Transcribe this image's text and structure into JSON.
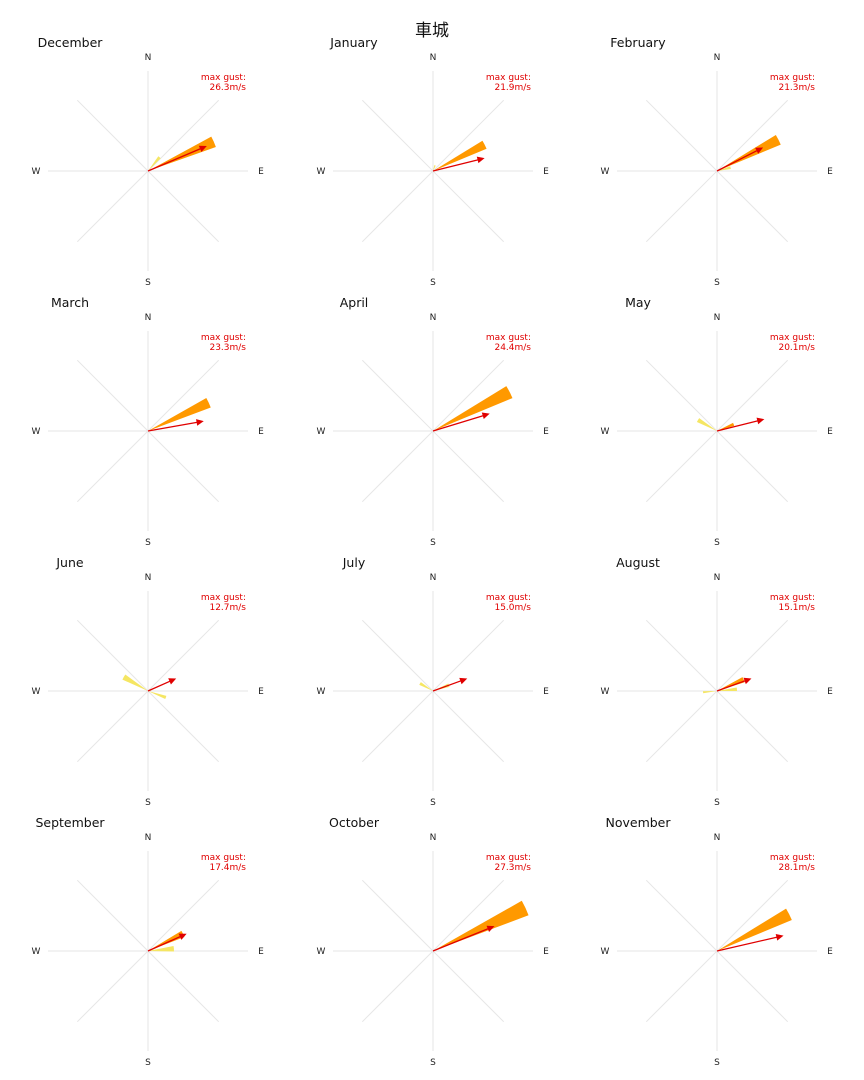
{
  "chart_data": {
    "type": "wind-rose",
    "title": "車城",
    "directions": [
      "N",
      "E",
      "S",
      "W"
    ],
    "gust_label": "max gust:",
    "colors": {
      "wedge_light": "#f5e663",
      "wedge_dark": "#ff9900",
      "arrow": "#e00000",
      "axis": "#e6e6e6"
    },
    "panels": [
      {
        "month": "December",
        "gust_value": "26.3m/s",
        "gust_speed": 26.3,
        "gust_dir": 67,
        "wedges": [
          {
            "dir": 66,
            "len": 0.72,
            "width": 9,
            "level": "dark"
          },
          {
            "dir": 40,
            "len": 0.18,
            "width": 10,
            "level": "light"
          }
        ]
      },
      {
        "month": "January",
        "gust_value": "21.9m/s",
        "gust_speed": 21.9,
        "gust_dir": 76,
        "wedges": [
          {
            "dir": 63,
            "len": 0.58,
            "width": 9,
            "level": "dark"
          },
          {
            "dir": 20,
            "len": 0.06,
            "width": 14,
            "level": "light"
          }
        ]
      },
      {
        "month": "February",
        "gust_value": "21.3m/s",
        "gust_speed": 21.3,
        "gust_dir": 63,
        "wedges": [
          {
            "dir": 63,
            "len": 0.69,
            "width": 9,
            "level": "dark"
          },
          {
            "dir": 76,
            "len": 0.14,
            "width": 12,
            "level": "light"
          }
        ]
      },
      {
        "month": "March",
        "gust_value": "23.3m/s",
        "gust_speed": 23.3,
        "gust_dir": 80,
        "wedges": [
          {
            "dir": 65,
            "len": 0.67,
            "width": 9,
            "level": "dark"
          }
        ]
      },
      {
        "month": "April",
        "gust_value": "24.4m/s",
        "gust_speed": 24.4,
        "gust_dir": 73,
        "wedges": [
          {
            "dir": 63,
            "len": 0.86,
            "width": 9,
            "level": "dark"
          }
        ]
      },
      {
        "month": "May",
        "gust_value": "20.1m/s",
        "gust_speed": 20.1,
        "gust_dir": 76,
        "wedges": [
          {
            "dir": 300,
            "len": 0.22,
            "width": 12,
            "level": "light"
          },
          {
            "dir": 68,
            "len": 0.18,
            "width": 10,
            "level": "dark"
          }
        ]
      },
      {
        "month": "June",
        "gust_value": "12.7m/s",
        "gust_speed": 12.7,
        "gust_dir": 66,
        "wedges": [
          {
            "dir": 300,
            "len": 0.28,
            "width": 12,
            "level": "light"
          },
          {
            "dir": 110,
            "len": 0.19,
            "width": 10,
            "level": "light"
          }
        ]
      },
      {
        "month": "July",
        "gust_value": "15.0m/s",
        "gust_speed": 15.0,
        "gust_dir": 70,
        "wedges": [
          {
            "dir": 300,
            "len": 0.15,
            "width": 12,
            "level": "light"
          },
          {
            "dir": 70,
            "len": 0.17,
            "width": 12,
            "level": "light"
          }
        ]
      },
      {
        "month": "August",
        "gust_value": "15.1m/s",
        "gust_speed": 15.1,
        "gust_dir": 70,
        "wedges": [
          {
            "dir": 67,
            "len": 0.29,
            "width": 11,
            "level": "dark"
          },
          {
            "dir": 265,
            "len": 0.14,
            "width": 8,
            "level": "light"
          },
          {
            "dir": 85,
            "len": 0.2,
            "width": 10,
            "level": "light"
          }
        ]
      },
      {
        "month": "September",
        "gust_value": "17.4m/s",
        "gust_speed": 17.4,
        "gust_dir": 66,
        "wedges": [
          {
            "dir": 64,
            "len": 0.39,
            "width": 10,
            "level": "dark"
          },
          {
            "dir": 85,
            "len": 0.26,
            "width": 12,
            "level": "light"
          }
        ]
      },
      {
        "month": "October",
        "gust_value": "27.3m/s",
        "gust_speed": 27.3,
        "gust_dir": 68,
        "wedges": [
          {
            "dir": 65,
            "len": 1.02,
            "width": 9,
            "level": "dark"
          }
        ]
      },
      {
        "month": "November",
        "gust_value": "28.1m/s",
        "gust_speed": 28.1,
        "gust_dir": 77,
        "wedges": [
          {
            "dir": 63,
            "len": 0.81,
            "width": 9,
            "level": "dark"
          }
        ]
      }
    ]
  }
}
